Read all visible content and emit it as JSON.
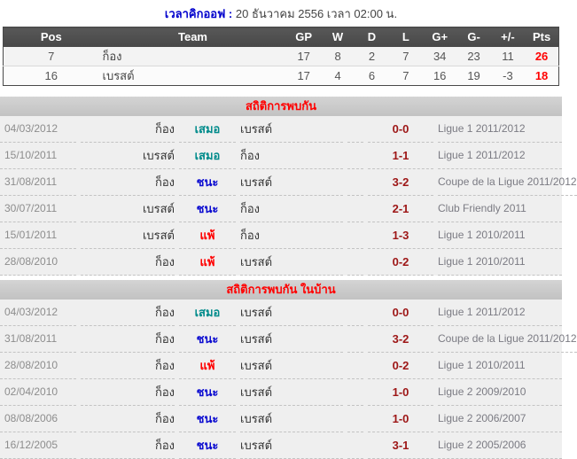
{
  "page": {
    "kickoff_label": "เวลาคิกออฟ :",
    "kickoff_value": "20 ธันวาคม 2556 เวลา 02:00 น."
  },
  "standings": {
    "headers": [
      "Pos",
      "Team",
      "GP",
      "W",
      "D",
      "L",
      "G+",
      "G-",
      "+/-",
      "Pts"
    ],
    "rows": [
      {
        "pos": "7",
        "team": "ก็อง",
        "gp": "17",
        "w": "8",
        "d": "2",
        "l": "7",
        "gplus": "34",
        "gminus": "23",
        "diff": "11",
        "pts": "26"
      },
      {
        "pos": "16",
        "team": "เบรสต์",
        "gp": "17",
        "w": "4",
        "d": "6",
        "l": "7",
        "gplus": "16",
        "gminus": "19",
        "diff": "-3",
        "pts": "18"
      }
    ]
  },
  "sections": [
    {
      "title": "สถิติการพบกัน",
      "rows": [
        {
          "date": "04/03/2012",
          "home": "ก็อง",
          "result": "เสมอ",
          "result_type": "draw",
          "away": "เบรสต์",
          "score": "0-0",
          "league": "Ligue 1 2011/2012"
        },
        {
          "date": "15/10/2011",
          "home": "เบรสต์",
          "result": "เสมอ",
          "result_type": "draw",
          "away": "ก็อง",
          "score": "1-1",
          "league": "Ligue 1 2011/2012"
        },
        {
          "date": "31/08/2011",
          "home": "ก็อง",
          "result": "ชนะ",
          "result_type": "win",
          "away": "เบรสต์",
          "score": "3-2",
          "league": "Coupe de la Ligue 2011/2012"
        },
        {
          "date": "30/07/2011",
          "home": "เบรสต์",
          "result": "ชนะ",
          "result_type": "win",
          "away": "ก็อง",
          "score": "2-1",
          "league": "Club Friendly 2011"
        },
        {
          "date": "15/01/2011",
          "home": "เบรสต์",
          "result": "แพ้",
          "result_type": "lose",
          "away": "ก็อง",
          "score": "1-3",
          "league": "Ligue 1 2010/2011"
        },
        {
          "date": "28/08/2010",
          "home": "ก็อง",
          "result": "แพ้",
          "result_type": "lose",
          "away": "เบรสต์",
          "score": "0-2",
          "league": "Ligue 1 2010/2011"
        }
      ]
    },
    {
      "title": "สถิติการพบกัน ในบ้าน",
      "rows": [
        {
          "date": "04/03/2012",
          "home": "ก็อง",
          "result": "เสมอ",
          "result_type": "draw",
          "away": "เบรสต์",
          "score": "0-0",
          "league": "Ligue 1 2011/2012"
        },
        {
          "date": "31/08/2011",
          "home": "ก็อง",
          "result": "ชนะ",
          "result_type": "win",
          "away": "เบรสต์",
          "score": "3-2",
          "league": "Coupe de la Ligue 2011/2012"
        },
        {
          "date": "28/08/2010",
          "home": "ก็อง",
          "result": "แพ้",
          "result_type": "lose",
          "away": "เบรสต์",
          "score": "0-2",
          "league": "Ligue 1 2010/2011"
        },
        {
          "date": "02/04/2010",
          "home": "ก็อง",
          "result": "ชนะ",
          "result_type": "win",
          "away": "เบรสต์",
          "score": "1-0",
          "league": "Ligue 2 2009/2010"
        },
        {
          "date": "08/08/2006",
          "home": "ก็อง",
          "result": "ชนะ",
          "result_type": "win",
          "away": "เบรสต์",
          "score": "1-0",
          "league": "Ligue 2 2006/2007"
        },
        {
          "date": "16/12/2005",
          "home": "ก็อง",
          "result": "ชนะ",
          "result_type": "win",
          "away": "เบรสต์",
          "score": "3-1",
          "league": "Ligue 2 2005/2006"
        }
      ]
    }
  ],
  "colors": {
    "kickoff_label": "#0000cc",
    "section_title": "#ff0000",
    "points": "#ff0000",
    "win": "#0b0bd0",
    "draw": "#008b8b",
    "lose": "#ff0000",
    "score": "#9d1616"
  }
}
